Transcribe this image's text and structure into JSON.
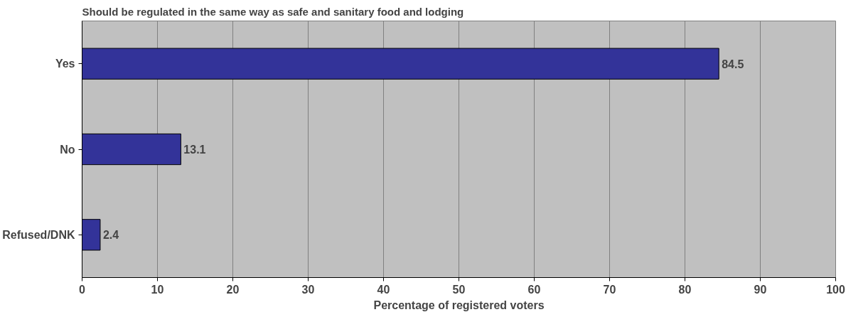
{
  "chart_data": {
    "type": "bar",
    "orientation": "horizontal",
    "title": "Should be regulated in the same way as safe and sanitary food and lodging",
    "xlabel": "Percentage of registered voters",
    "categories": [
      "Yes",
      "No",
      "Refused/DNK"
    ],
    "values": [
      84.5,
      13.1,
      2.4
    ],
    "color": "#333399",
    "data_labels": true,
    "xlim": [
      0,
      100
    ],
    "xticks": [
      0,
      10,
      20,
      30,
      40,
      50,
      60,
      70,
      80,
      90,
      100
    ],
    "grid": "x"
  }
}
